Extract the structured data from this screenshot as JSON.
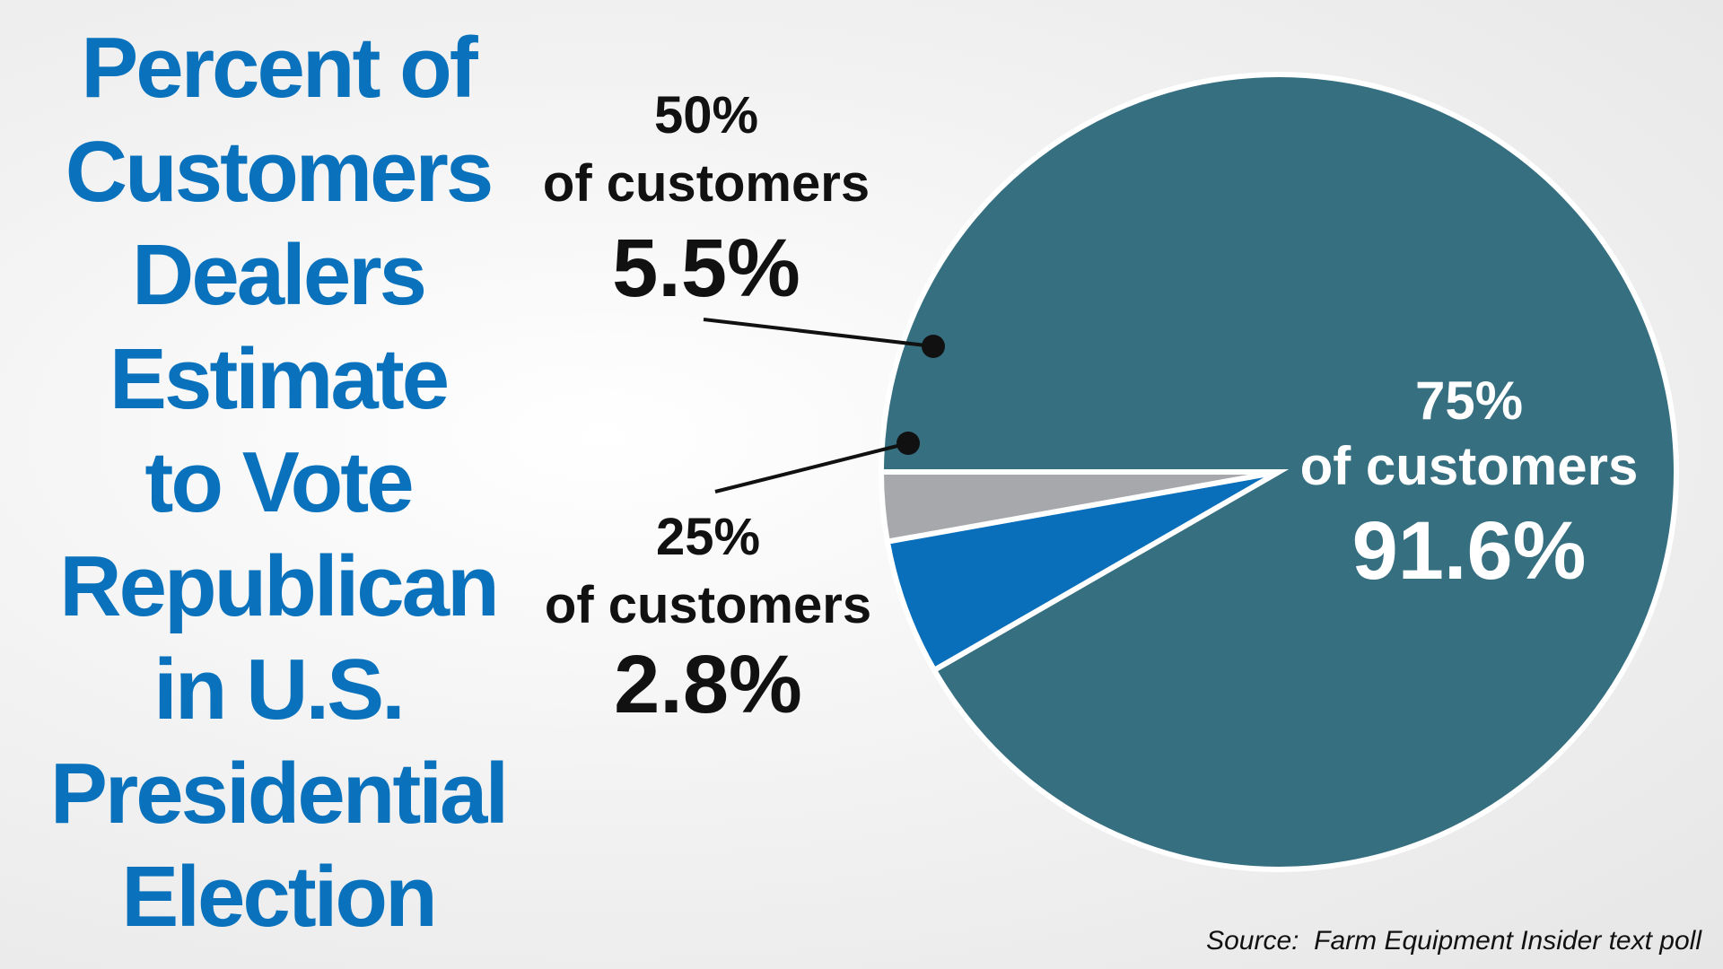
{
  "title_lines": [
    "Percent of",
    "Customers",
    "Dealers",
    "Estimate",
    "to Vote",
    "Republican",
    "in U.S.",
    "Presidential",
    "Election"
  ],
  "source": "Source:  Farm Equipment Insider text poll",
  "colors": {
    "title": "#0a72bc",
    "slice_large": "#356f80",
    "slice_mid": "#0a6fbb",
    "slice_small": "#a7a8ab",
    "slice_border": "#ffffff",
    "label_dark": "#111111",
    "label_light": "#ffffff"
  },
  "chart_data": {
    "type": "pie",
    "title": "Percent of Customers Dealers Estimate to Vote Republican in U.S. Presidential Election",
    "slices": [
      {
        "name": "75% of customers",
        "value": 91.6,
        "line1": "75%",
        "line2": "of customers",
        "value_label": "91.6%"
      },
      {
        "name": "50% of customers",
        "value": 5.5,
        "line1": "50%",
        "line2": "of customers",
        "value_label": "5.5%"
      },
      {
        "name": "25% of customers",
        "value": 2.8,
        "line1": "25%",
        "line2": "of customers",
        "value_label": "2.8%"
      }
    ],
    "legend": "none"
  }
}
